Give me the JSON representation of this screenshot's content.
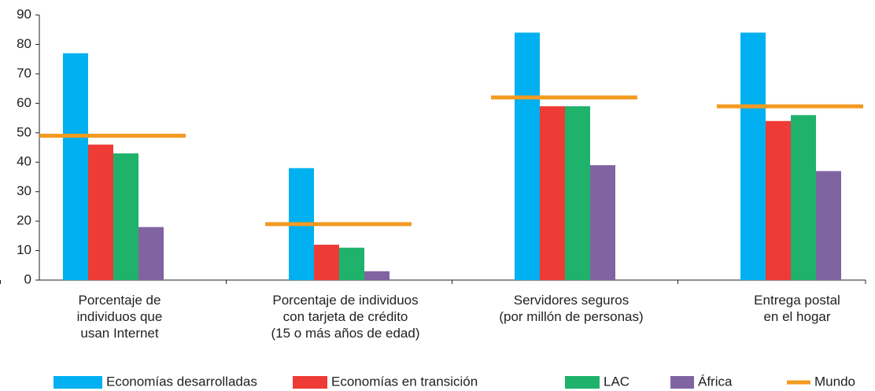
{
  "chart_data": {
    "type": "bar",
    "categories": [
      "Porcentaje de\nindividuos que\nusan Internet",
      "Porcentaje de individuos\ncon tarjeta de crédito\n(15 o más años de edad)",
      "Servidores seguros\n(por millón de personas)",
      "Entrega postal\nen el hogar"
    ],
    "series": [
      {
        "name": "Economías desarrolladas",
        "color": "#00b0f0",
        "values": [
          77,
          38,
          84,
          84
        ]
      },
      {
        "name": "Economías en transición",
        "color": "#ef3b36",
        "values": [
          46,
          12,
          59,
          54
        ]
      },
      {
        "name": "LAC",
        "color": "#1fb26b",
        "values": [
          43,
          11,
          59,
          56
        ]
      },
      {
        "name": "África",
        "color": "#8064a2",
        "values": [
          18,
          3,
          39,
          37
        ]
      },
      {
        "name": "Mundo",
        "color": "#f39a21",
        "type": "line",
        "values": [
          49,
          19,
          62,
          59
        ]
      }
    ],
    "ylim": [
      0,
      90
    ],
    "yticks": [
      0,
      10,
      20,
      30,
      40,
      50,
      60,
      70,
      80,
      90
    ],
    "grid": false,
    "legend": "bottom"
  }
}
